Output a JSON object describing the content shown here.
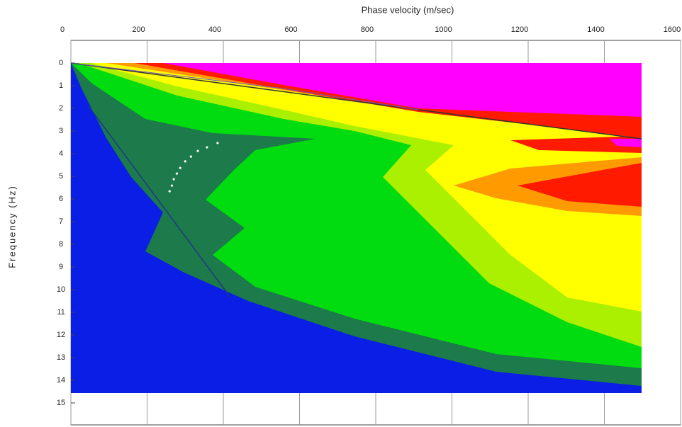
{
  "chart_data": {
    "type": "scatter",
    "x_label": "Phase velocity (m/sec)",
    "y_label": "Frequency (Hz)",
    "x": [
      259,
      265,
      270,
      278,
      287,
      300,
      315,
      333,
      357,
      385
    ],
    "values": [
      5.66,
      5.41,
      5.13,
      4.88,
      4.63,
      4.34,
      4.13,
      3.88,
      3.72,
      3.53
    ],
    "color": "#ffffff",
    "xlim": [
      0,
      1600
    ],
    "xticks": [
      0,
      200,
      400,
      600,
      800,
      1000,
      1200,
      1400,
      1600
    ],
    "ylim": [
      0,
      15
    ],
    "yticks": [
      0,
      1,
      2,
      3,
      4,
      5,
      6,
      7,
      8,
      9,
      10,
      11,
      12,
      13,
      14,
      15
    ],
    "y_inverted": true,
    "grid": true
  }
}
